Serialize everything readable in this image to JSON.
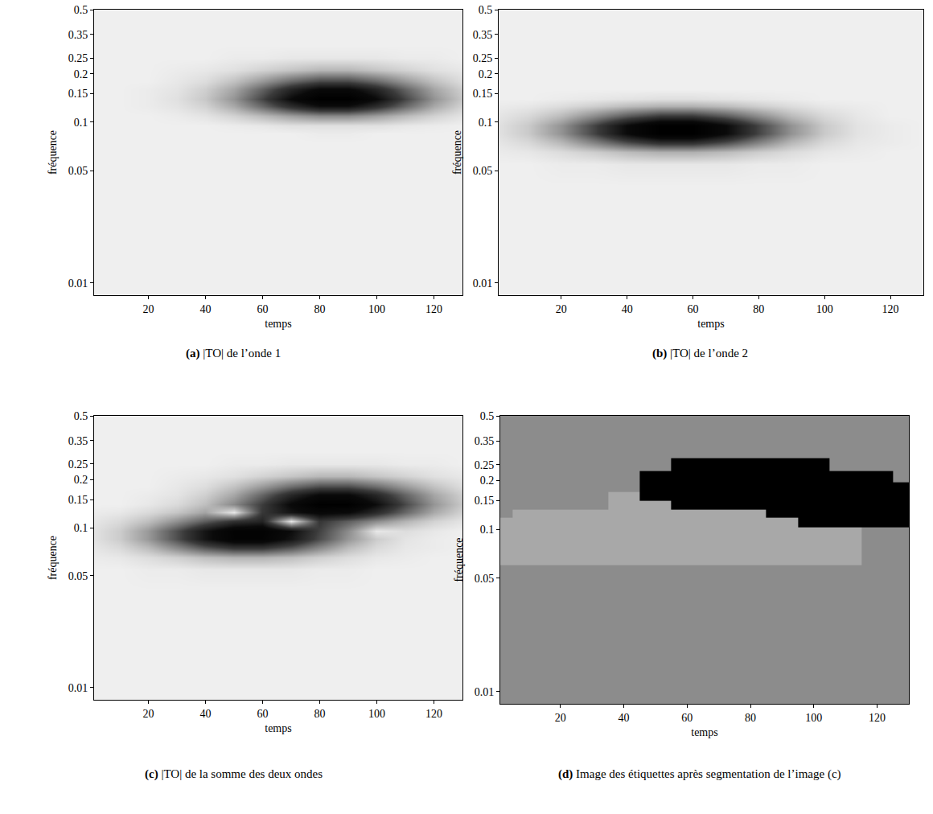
{
  "chart_data": [
    {
      "type": "heatmap",
      "label": "(a)",
      "title": "|TO| de l’onde 1",
      "xlabel": "temps",
      "ylabel": "fréquence",
      "log": "y",
      "xlim": [
        1,
        130
      ],
      "ylim": [
        0.0084,
        0.5
      ],
      "xticks": [
        20,
        40,
        60,
        80,
        100,
        120
      ],
      "yticks": [
        0.01,
        0.05,
        0.1,
        0.15,
        0.2,
        0.25,
        0.35,
        0.5
      ],
      "x": [
        0,
        10,
        20,
        30,
        40,
        50,
        60,
        70,
        80,
        90,
        100,
        110,
        120,
        130
      ],
      "y": [
        0.0085,
        0.02,
        0.04,
        0.055,
        0.065,
        0.075,
        0.085,
        0.095,
        0.11,
        0.125,
        0.14,
        0.16,
        0.18,
        0.21,
        0.25,
        0.3,
        0.5
      ],
      "z": [
        [
          0,
          0,
          0,
          0,
          0,
          0,
          0,
          0,
          0,
          0,
          0,
          0,
          0,
          0
        ],
        [
          0,
          0,
          0,
          0,
          0,
          0,
          0,
          0,
          0,
          0,
          0,
          0,
          0,
          0
        ],
        [
          0,
          0,
          0,
          0,
          0,
          0,
          0,
          0,
          0,
          0,
          0,
          0,
          0,
          0
        ],
        [
          0,
          0,
          0,
          0,
          0,
          0,
          0,
          0,
          0,
          0,
          0,
          0,
          0,
          0
        ],
        [
          0,
          0,
          0,
          0,
          0,
          0,
          0,
          0,
          0,
          0,
          0,
          0,
          0,
          0
        ],
        [
          0,
          0,
          0,
          0,
          0,
          0,
          0,
          0,
          0,
          0,
          0,
          0,
          0,
          0
        ],
        [
          0,
          0,
          0,
          0,
          0,
          0,
          0,
          0,
          0.01,
          0.01,
          0,
          0,
          0,
          0
        ],
        [
          0,
          0,
          0,
          0,
          0,
          0.01,
          0.02,
          0.04,
          0.04,
          0.04,
          0.04,
          0.02,
          0.01,
          0
        ],
        [
          0,
          0,
          0,
          0.01,
          0.03,
          0.08,
          0.15,
          0.23,
          0.29,
          0.29,
          0.23,
          0.15,
          0.08,
          0.03
        ],
        [
          0,
          0,
          0.01,
          0.03,
          0.08,
          0.2,
          0.39,
          0.6,
          0.75,
          0.75,
          0.6,
          0.39,
          0.2,
          0.08
        ],
        [
          0,
          0,
          0.01,
          0.04,
          0.11,
          0.26,
          0.5,
          0.78,
          0.97,
          0.97,
          0.78,
          0.5,
          0.26,
          0.11
        ],
        [
          0,
          0,
          0.01,
          0.03,
          0.09,
          0.21,
          0.41,
          0.64,
          0.8,
          0.8,
          0.64,
          0.41,
          0.21,
          0.09
        ],
        [
          0,
          0,
          0,
          0.02,
          0.05,
          0.13,
          0.25,
          0.39,
          0.49,
          0.49,
          0.39,
          0.25,
          0.13,
          0.05
        ],
        [
          0,
          0,
          0,
          0.01,
          0.02,
          0.04,
          0.08,
          0.12,
          0.16,
          0.16,
          0.12,
          0.08,
          0.04,
          0.02
        ],
        [
          0,
          0,
          0,
          0,
          0,
          0.01,
          0.01,
          0.02,
          0.02,
          0.02,
          0.02,
          0.01,
          0.01,
          0
        ],
        [
          0,
          0,
          0,
          0,
          0,
          0,
          0,
          0,
          0,
          0,
          0,
          0,
          0,
          0
        ],
        [
          0,
          0,
          0,
          0,
          0,
          0,
          0,
          0,
          0,
          0,
          0,
          0,
          0,
          0
        ]
      ]
    },
    {
      "type": "heatmap",
      "label": "(b)",
      "title": "|TO| de l’onde 2",
      "xlabel": "temps",
      "ylabel": "fréquence",
      "log": "y",
      "xlim": [
        1,
        130
      ],
      "ylim": [
        0.0084,
        0.5
      ],
      "xticks": [
        20,
        40,
        60,
        80,
        100,
        120
      ],
      "yticks": [
        0.01,
        0.05,
        0.1,
        0.15,
        0.2,
        0.25,
        0.35,
        0.5
      ],
      "x": [
        0,
        10,
        20,
        30,
        40,
        50,
        60,
        70,
        80,
        90,
        100,
        110,
        120,
        130
      ],
      "y": [
        0.0085,
        0.02,
        0.04,
        0.055,
        0.065,
        0.075,
        0.085,
        0.095,
        0.11,
        0.125,
        0.14,
        0.16,
        0.18,
        0.21,
        0.25,
        0.3,
        0.5
      ],
      "z": [
        [
          0,
          0,
          0,
          0,
          0,
          0,
          0,
          0,
          0,
          0,
          0,
          0,
          0,
          0
        ],
        [
          0,
          0,
          0,
          0,
          0,
          0,
          0,
          0,
          0,
          0,
          0,
          0,
          0,
          0
        ],
        [
          0,
          0,
          0,
          0,
          0,
          0,
          0,
          0,
          0,
          0,
          0,
          0,
          0,
          0
        ],
        [
          0,
          0,
          0.01,
          0.01,
          0.02,
          0.02,
          0.02,
          0.02,
          0.01,
          0.01,
          0,
          0,
          0,
          0
        ],
        [
          0.01,
          0.02,
          0.05,
          0.09,
          0.14,
          0.17,
          0.17,
          0.14,
          0.09,
          0.05,
          0.02,
          0.01,
          0,
          0
        ],
        [
          0.02,
          0.06,
          0.15,
          0.3,
          0.46,
          0.57,
          0.57,
          0.46,
          0.3,
          0.15,
          0.06,
          0.02,
          0.01,
          0
        ],
        [
          0.03,
          0.1,
          0.25,
          0.48,
          0.74,
          0.92,
          0.92,
          0.74,
          0.48,
          0.25,
          0.1,
          0.03,
          0.01,
          0
        ],
        [
          0.03,
          0.1,
          0.25,
          0.48,
          0.74,
          0.92,
          0.92,
          0.74,
          0.48,
          0.25,
          0.1,
          0.03,
          0.01,
          0
        ],
        [
          0.02,
          0.06,
          0.14,
          0.27,
          0.41,
          0.51,
          0.51,
          0.41,
          0.27,
          0.14,
          0.06,
          0.02,
          0,
          0
        ],
        [
          0.01,
          0.02,
          0.05,
          0.09,
          0.14,
          0.17,
          0.17,
          0.14,
          0.09,
          0.05,
          0.02,
          0.01,
          0,
          0
        ],
        [
          0,
          0,
          0.01,
          0.02,
          0.03,
          0.04,
          0.04,
          0.03,
          0.02,
          0.01,
          0,
          0,
          0,
          0
        ],
        [
          0,
          0,
          0,
          0,
          0,
          0,
          0,
          0,
          0,
          0,
          0,
          0,
          0,
          0
        ],
        [
          0,
          0,
          0,
          0,
          0,
          0,
          0,
          0,
          0,
          0,
          0,
          0,
          0,
          0
        ],
        [
          0,
          0,
          0,
          0,
          0,
          0,
          0,
          0,
          0,
          0,
          0,
          0,
          0,
          0
        ],
        [
          0,
          0,
          0,
          0,
          0,
          0,
          0,
          0,
          0,
          0,
          0,
          0,
          0,
          0
        ],
        [
          0,
          0,
          0,
          0,
          0,
          0,
          0,
          0,
          0,
          0,
          0,
          0,
          0,
          0
        ],
        [
          0,
          0,
          0,
          0,
          0,
          0,
          0,
          0,
          0,
          0,
          0,
          0,
          0,
          0
        ]
      ]
    },
    {
      "type": "heatmap",
      "label": "(c)",
      "title": "|TO| de la somme des deux ondes",
      "xlabel": "temps",
      "ylabel": "fréquence",
      "log": "y",
      "xlim": [
        1,
        130
      ],
      "ylim": [
        0.0084,
        0.5
      ],
      "xticks": [
        20,
        40,
        60,
        80,
        100,
        120
      ],
      "yticks": [
        0.01,
        0.05,
        0.1,
        0.15,
        0.2,
        0.25,
        0.35,
        0.5
      ],
      "x": [
        0,
        10,
        20,
        30,
        40,
        50,
        60,
        70,
        80,
        90,
        100,
        110,
        120,
        130
      ],
      "y": [
        0.0085,
        0.02,
        0.04,
        0.055,
        0.065,
        0.075,
        0.085,
        0.095,
        0.11,
        0.125,
        0.14,
        0.16,
        0.18,
        0.21,
        0.25,
        0.3,
        0.5
      ],
      "z": [
        [
          0,
          0,
          0,
          0,
          0,
          0,
          0,
          0,
          0,
          0,
          0,
          0,
          0,
          0
        ],
        [
          0,
          0,
          0,
          0,
          0,
          0,
          0,
          0,
          0,
          0,
          0,
          0,
          0,
          0
        ],
        [
          0,
          0,
          0,
          0,
          0,
          0,
          0,
          0,
          0,
          0,
          0,
          0,
          0,
          0
        ],
        [
          0,
          0,
          0.01,
          0.01,
          0.02,
          0.02,
          0.02,
          0.02,
          0.01,
          0.01,
          0,
          0,
          0,
          0
        ],
        [
          0.01,
          0.02,
          0.05,
          0.09,
          0.14,
          0.17,
          0.17,
          0.14,
          0.09,
          0.05,
          0.02,
          0.01,
          0,
          0
        ],
        [
          0.02,
          0.06,
          0.15,
          0.3,
          0.46,
          0.57,
          0.57,
          0.46,
          0.3,
          0.15,
          0.06,
          0.02,
          0.01,
          0
        ],
        [
          0.03,
          0.1,
          0.25,
          0.48,
          0.74,
          0.92,
          0.92,
          0.74,
          0.49,
          0.26,
          0.1,
          0.03,
          0.01,
          0
        ],
        [
          0.03,
          0.1,
          0.25,
          0.48,
          0.74,
          0.93,
          0.94,
          0.78,
          0.52,
          0.29,
          0.02,
          0.05,
          0.02,
          0
        ],
        [
          0.02,
          0.06,
          0.14,
          0.28,
          0.44,
          0.59,
          0.66,
          0.02,
          0.56,
          0.43,
          0.29,
          0.17,
          0.08,
          0.03
        ],
        [
          0.01,
          0.02,
          0.06,
          0.12,
          0.22,
          0.02,
          0.56,
          0.74,
          0.84,
          0.8,
          0.62,
          0.4,
          0.2,
          0.08
        ],
        [
          0,
          0,
          0.02,
          0.06,
          0.14,
          0.3,
          0.54,
          0.81,
          0.99,
          0.98,
          0.78,
          0.5,
          0.26,
          0.11
        ],
        [
          0,
          0,
          0.01,
          0.03,
          0.09,
          0.21,
          0.41,
          0.64,
          0.8,
          0.8,
          0.64,
          0.41,
          0.21,
          0.09
        ],
        [
          0,
          0,
          0,
          0.02,
          0.05,
          0.13,
          0.25,
          0.39,
          0.49,
          0.49,
          0.39,
          0.25,
          0.13,
          0.05
        ],
        [
          0,
          0,
          0,
          0.01,
          0.02,
          0.04,
          0.08,
          0.12,
          0.16,
          0.16,
          0.12,
          0.08,
          0.04,
          0.02
        ],
        [
          0,
          0,
          0,
          0,
          0,
          0.01,
          0.01,
          0.02,
          0.02,
          0.02,
          0.02,
          0.01,
          0.01,
          0
        ],
        [
          0,
          0,
          0,
          0,
          0,
          0,
          0,
          0,
          0,
          0,
          0,
          0,
          0,
          0
        ],
        [
          0,
          0,
          0,
          0,
          0,
          0,
          0,
          0,
          0,
          0,
          0,
          0,
          0,
          0
        ]
      ]
    },
    {
      "type": "labels",
      "label": "(d)",
      "title": "Image des étiquettes après segmentation de l’image (c)",
      "xlabel": "temps",
      "ylabel": "fréquence",
      "log": "y",
      "xlim": [
        1,
        130
      ],
      "ylim": [
        0.0084,
        0.5
      ],
      "xticks": [
        20,
        40,
        60,
        80,
        100,
        120
      ],
      "yticks": [
        0.01,
        0.05,
        0.1,
        0.15,
        0.2,
        0.25,
        0.35,
        0.5
      ],
      "colors": [
        "#8c8c8c",
        "#a8a8a8",
        "#000000"
      ],
      "x": [
        0,
        10,
        20,
        30,
        40,
        50,
        60,
        70,
        80,
        90,
        100,
        110,
        120,
        130
      ],
      "y": [
        0.0085,
        0.02,
        0.04,
        0.055,
        0.065,
        0.075,
        0.085,
        0.095,
        0.11,
        0.125,
        0.14,
        0.16,
        0.18,
        0.21,
        0.25,
        0.3,
        0.5
      ],
      "z": [
        [
          0,
          0,
          0,
          0,
          0,
          0,
          0,
          0,
          0,
          0,
          0,
          0,
          0,
          0
        ],
        [
          0,
          0,
          0,
          0,
          0,
          0,
          0,
          0,
          0,
          0,
          0,
          0,
          0,
          0
        ],
        [
          0,
          0,
          0,
          0,
          0,
          0,
          0,
          0,
          0,
          0,
          0,
          0,
          0,
          0
        ],
        [
          0,
          0,
          0,
          0,
          0,
          0,
          0,
          0,
          0,
          0,
          0,
          0,
          0,
          0
        ],
        [
          1,
          1,
          1,
          1,
          1,
          1,
          1,
          1,
          1,
          1,
          1,
          1,
          0,
          0
        ],
        [
          1,
          1,
          1,
          1,
          1,
          1,
          1,
          1,
          1,
          1,
          1,
          1,
          0,
          0
        ],
        [
          1,
          1,
          1,
          1,
          1,
          1,
          1,
          1,
          1,
          1,
          1,
          1,
          0,
          0
        ],
        [
          1,
          1,
          1,
          1,
          1,
          1,
          1,
          1,
          1,
          1,
          1,
          1,
          0,
          0
        ],
        [
          1,
          1,
          1,
          1,
          1,
          1,
          1,
          1,
          1,
          1,
          2,
          2,
          2,
          2
        ],
        [
          0,
          1,
          1,
          1,
          1,
          1,
          1,
          1,
          1,
          2,
          2,
          2,
          2,
          2
        ],
        [
          0,
          0,
          0,
          0,
          1,
          1,
          2,
          2,
          2,
          2,
          2,
          2,
          2,
          2
        ],
        [
          0,
          0,
          0,
          0,
          1,
          2,
          2,
          2,
          2,
          2,
          2,
          2,
          2,
          2
        ],
        [
          0,
          0,
          0,
          0,
          0,
          2,
          2,
          2,
          2,
          2,
          2,
          2,
          2,
          2
        ],
        [
          0,
          0,
          0,
          0,
          0,
          2,
          2,
          2,
          2,
          2,
          2,
          2,
          2,
          0
        ],
        [
          0,
          0,
          0,
          0,
          0,
          0,
          2,
          2,
          2,
          2,
          2,
          0,
          0,
          0
        ],
        [
          0,
          0,
          0,
          0,
          0,
          0,
          0,
          0,
          0,
          0,
          0,
          0,
          0,
          0
        ],
        [
          0,
          0,
          0,
          0,
          0,
          0,
          0,
          0,
          0,
          0,
          0,
          0,
          0,
          0
        ]
      ]
    }
  ]
}
